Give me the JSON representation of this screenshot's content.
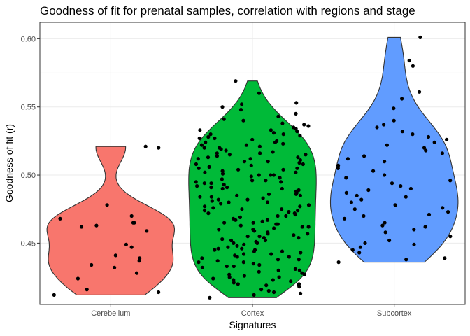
{
  "chart_data": {
    "type": "violin",
    "title": "Goodness of fit for prenatal samples, correlation with regions and stage",
    "xlabel": "Signatures",
    "ylabel": "Goodness of fit (r)",
    "categories": [
      "Cerebellum",
      "Cortex",
      "Subcortex"
    ],
    "ylim": [
      0.405,
      0.612
    ],
    "yticks": [
      0.45,
      0.5,
      0.55,
      0.6
    ],
    "ytick_labels": [
      "0.45",
      "0.50",
      "0.55",
      "0.60"
    ],
    "grid": true,
    "legend": "none",
    "colors": {
      "Cerebellum": "#F8766D",
      "Cortex": "#00BA38",
      "Subcortex": "#619CFF"
    },
    "point_color": "#000000",
    "series": [
      {
        "values": [
          0.412,
          0.414,
          0.416,
          0.424,
          0.428,
          0.432,
          0.434,
          0.437,
          0.439,
          0.441,
          0.447,
          0.449,
          0.459,
          0.462,
          0.463,
          0.465,
          0.465,
          0.468,
          0.47,
          0.478,
          0.52,
          0.521
        ]
      },
      {
        "values": [
          0.41,
          0.412,
          0.413,
          0.414,
          0.415,
          0.416,
          0.418,
          0.419,
          0.42,
          0.421,
          0.422,
          0.423,
          0.424,
          0.425,
          0.426,
          0.427,
          0.428,
          0.429,
          0.43,
          0.431,
          0.432,
          0.433,
          0.434,
          0.435,
          0.436,
          0.437,
          0.438,
          0.439,
          0.44,
          0.441,
          0.442,
          0.443,
          0.444,
          0.445,
          0.446,
          0.447,
          0.448,
          0.449,
          0.45,
          0.451,
          0.452,
          0.453,
          0.454,
          0.455,
          0.456,
          0.457,
          0.458,
          0.459,
          0.46,
          0.461,
          0.462,
          0.463,
          0.464,
          0.465,
          0.466,
          0.467,
          0.468,
          0.469,
          0.47,
          0.471,
          0.472,
          0.473,
          0.474,
          0.475,
          0.476,
          0.477,
          0.478,
          0.479,
          0.48,
          0.481,
          0.482,
          0.483,
          0.484,
          0.485,
          0.486,
          0.487,
          0.488,
          0.489,
          0.49,
          0.491,
          0.492,
          0.493,
          0.494,
          0.495,
          0.496,
          0.497,
          0.498,
          0.499,
          0.5,
          0.501,
          0.502,
          0.503,
          0.504,
          0.505,
          0.506,
          0.507,
          0.508,
          0.509,
          0.51,
          0.511,
          0.512,
          0.513,
          0.514,
          0.515,
          0.516,
          0.517,
          0.518,
          0.519,
          0.52,
          0.521,
          0.522,
          0.523,
          0.524,
          0.525,
          0.526,
          0.527,
          0.528,
          0.529,
          0.53,
          0.531,
          0.532,
          0.533,
          0.534,
          0.535,
          0.536,
          0.537,
          0.538,
          0.54,
          0.541,
          0.543,
          0.545,
          0.548,
          0.55,
          0.552,
          0.553,
          0.56,
          0.569,
          0.419,
          0.425,
          0.433,
          0.438,
          0.442,
          0.446,
          0.452,
          0.457,
          0.462,
          0.467,
          0.472,
          0.477,
          0.482,
          0.486,
          0.491,
          0.496,
          0.5,
          0.504,
          0.508,
          0.512,
          0.516,
          0.522,
          0.527,
          0.533,
          0.445,
          0.455,
          0.465,
          0.475,
          0.485,
          0.495,
          0.505,
          0.515,
          0.45,
          0.46,
          0.47,
          0.48,
          0.49,
          0.5,
          0.51,
          0.52,
          0.53,
          0.44,
          0.43,
          0.42,
          0.423,
          0.427,
          0.436,
          0.444,
          0.454,
          0.464,
          0.474,
          0.484,
          0.494,
          0.502,
          0.513,
          0.524
        ]
      },
      {
        "values": [
          0.436,
          0.438,
          0.439,
          0.443,
          0.445,
          0.447,
          0.449,
          0.45,
          0.452,
          0.455,
          0.458,
          0.46,
          0.462,
          0.463,
          0.465,
          0.468,
          0.47,
          0.471,
          0.473,
          0.475,
          0.476,
          0.478,
          0.48,
          0.482,
          0.484,
          0.485,
          0.487,
          0.489,
          0.49,
          0.492,
          0.494,
          0.496,
          0.498,
          0.5,
          0.503,
          0.505,
          0.507,
          0.51,
          0.512,
          0.514,
          0.516,
          0.518,
          0.52,
          0.522,
          0.524,
          0.526,
          0.528,
          0.53,
          0.532,
          0.535,
          0.537,
          0.54,
          0.549,
          0.556,
          0.561,
          0.58,
          0.584,
          0.601
        ]
      }
    ]
  }
}
